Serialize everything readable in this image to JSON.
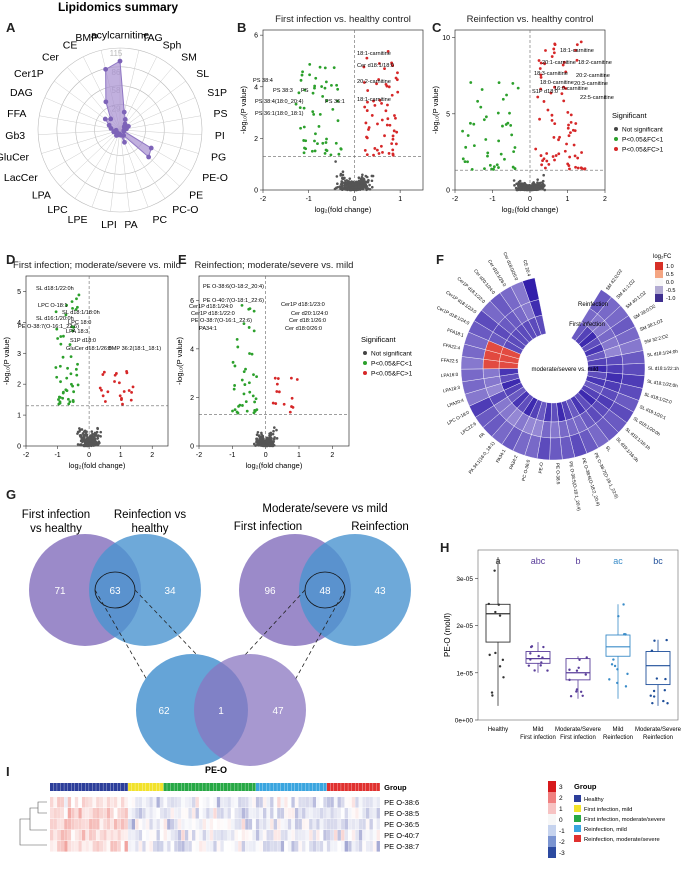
{
  "panel_letters": {
    "A": "A",
    "B": "B",
    "C": "C",
    "D": "D",
    "E": "E",
    "F": "F",
    "G": "G",
    "H": "H",
    "I": "I"
  },
  "chart_data": [
    {
      "id": "A",
      "type": "radar",
      "title": "Lipidomics summary",
      "radial_ticks": [
        "115",
        "86",
        "58",
        "29"
      ],
      "categories": [
        "acylcarnitine",
        "TAG",
        "Sph",
        "SM",
        "SL",
        "S1P",
        "PS",
        "PI",
        "PG",
        "PE-O",
        "PE",
        "PC-O",
        "PC",
        "PA",
        "LPI",
        "LPE",
        "LPC",
        "LPA",
        "LacCer",
        "GluCer",
        "Gb3",
        "FFA",
        "DAG",
        "Cer1P",
        "Cer",
        "CE",
        "BMP"
      ],
      "values": [
        105,
        28,
        18,
        12,
        8,
        14,
        10,
        6,
        6,
        55,
        60,
        10,
        20,
        8,
        6,
        8,
        10,
        6,
        6,
        10,
        6,
        14,
        18,
        28,
        22,
        48,
        95
      ]
    },
    {
      "id": "B",
      "type": "scatter",
      "title": "First infection vs. healthy control",
      "xlabel": "log₂(fold change)",
      "ylabel": "-log₁₀(P value)",
      "xlim": [
        -2,
        1.5
      ],
      "ylim": [
        0,
        6.2
      ],
      "xticks": [
        "-2",
        "-1",
        "0",
        "1"
      ],
      "yticks": [
        "0",
        "2",
        "4",
        "6"
      ],
      "annotations": [
        "18:1-carnitine",
        "Cer d18:1/18:0",
        "20:2-carnitine",
        "18:1-carnitine",
        "PS 38:4",
        "PS 38:3",
        "PS",
        "PS 38:4(18:0_20:4)",
        "PS 36:1",
        "PS 36:1(18:0_18:1)"
      ]
    },
    {
      "id": "C",
      "type": "scatter",
      "title": "Reinfection vs. healthy control",
      "xlabel": "log₂(fold change)",
      "ylabel": "-log₁₀(P value)",
      "xlim": [
        -2,
        2
      ],
      "ylim": [
        0,
        10.5
      ],
      "xticks": [
        "-2",
        "-1",
        "0",
        "1",
        "2"
      ],
      "yticks": [
        "0",
        "5",
        "10"
      ],
      "annotations": [
        "18:1-carnitine",
        "20:1-carnitine",
        "18:2-carnitine",
        "18:3-carnitine",
        "20:2-carnitine",
        "18:0-carnitine",
        "20:3-carnitine",
        "S1P d18:0",
        "16:0-carnitine",
        "22:5-carnitine"
      ],
      "legend_title": "Significant",
      "legend": [
        "Not significant",
        "P<0.05&FC<1",
        "P<0.05&FC>1"
      ],
      "legend_colors": [
        "#444444",
        "#2ca02c",
        "#d62728"
      ]
    },
    {
      "id": "D",
      "type": "scatter",
      "title": "First infection; moderate/severe vs. mild",
      "xlabel": "log₂(fold change)",
      "ylabel": "-log₁₀(P value)",
      "xlim": [
        -2,
        2.5
      ],
      "ylim": [
        0,
        5.5
      ],
      "xticks": [
        "-2",
        "-1",
        "0",
        "1",
        "2"
      ],
      "yticks": [
        "0",
        "1",
        "2",
        "3",
        "4",
        "5"
      ],
      "annotations": [
        "SL d18:1/22:0h",
        "LPC O-18:1",
        "SL d16:1/20:0h",
        "SL d18:1/18:0h",
        "LPC 18:0",
        "PE O-38:7(O-16:1_22:6)",
        "LPA 18:3",
        "S1P d18:0",
        "GluCer d18:1/26:0",
        "BMP 36:2(18:1_18:1)"
      ]
    },
    {
      "id": "E",
      "type": "scatter",
      "title": "Reinfection; moderate/severe vs. mild",
      "xlabel": "log₂(fold change)",
      "ylabel": "-log₁₀(P value)",
      "xlim": [
        -2,
        2.5
      ],
      "ylim": [
        0,
        7
      ],
      "xticks": [
        "-2",
        "-1",
        "0",
        "1",
        "2"
      ],
      "yticks": [
        "0",
        "2",
        "4",
        "6"
      ],
      "annotations": [
        "PE O-38:6(O-18:2_20:4)",
        "PE O-40:7(O-18:1_22:6)",
        "Cer1P d18:1/24:0",
        "Cer1P d18:1/23:0",
        "Cer1P d18:1/22:0",
        "Cer d20:1/24:0",
        "PE O-38:7(O-16:1_22:6)",
        "Cer d18:1/26:0",
        "PA34:1",
        "Cer d18:0/26:0"
      ],
      "legend_title": "Significant",
      "legend": [
        "Not significant",
        "P<0.05&FC<1",
        "P<0.05&FC>1"
      ],
      "legend_colors": [
        "#444444",
        "#2ca02c",
        "#d62728"
      ]
    },
    {
      "id": "F",
      "type": "heatmap",
      "title": "log₂FC",
      "scale_ticks": [
        "1.0",
        "0.5",
        "0.0",
        "-0.5",
        "-1.0"
      ],
      "ring_labels": [
        "Reinfection",
        "First infection",
        "moderate/severe vs. mild"
      ],
      "lipids": [
        "SM 42:0;O2",
        "SM 41:1;O2",
        "SM 40:1;O2",
        "SM 39:0;O2",
        "SM 38:1;O2",
        "SM 32:2;O2",
        "SL d18:1/24:0h",
        "SL d18:1/22:1h",
        "SL d18:1/22:0h",
        "SL d18:1/22:0",
        "SL d19:1/20:1",
        "SL d18:1/20:0h",
        "SL d19:1/16:1h",
        "SL d19:1/16:0h",
        "SL",
        "PE O-38:7(O-16:1_22:6)",
        "PE O-38:6(O-18:2_20:4)",
        "PE O-38:5(O-18:1_20:4)",
        "PE O-38:5",
        "PE-O",
        "PC O-36:0",
        "PA34:2",
        "PA34:1",
        "PA 34:1(16:0_18:1)",
        "PA",
        "LPC22:6",
        "LPC O-18:0",
        "LPA20:4",
        "LPA18:3",
        "LPA16:0",
        "FFA22:5",
        "FFA22:4",
        "FFA18:1",
        "Cer1P d18:1/24:0",
        "Cer1P d18:1/23:0",
        "Cer1P d18:1/22:0",
        "Cer d20:1/24:0",
        "Cer d18:1/26:0",
        "Cer d18:0/26:0",
        "CE 20:4"
      ],
      "reinfection": [
        -0.6,
        -0.5,
        -0.5,
        -0.6,
        -0.5,
        -0.4,
        -0.6,
        -0.7,
        -0.8,
        -0.7,
        -0.6,
        -0.7,
        -0.6,
        -0.6,
        -0.5,
        -0.6,
        -0.7,
        -0.6,
        -0.6,
        -0.7,
        -0.5,
        -0.5,
        -0.6,
        -0.5,
        -0.6,
        -0.6,
        -0.8,
        -0.4,
        -0.5,
        -0.5,
        -0.4,
        -0.5,
        -0.5,
        -0.6,
        -0.7,
        -0.5,
        -0.6,
        -0.5,
        -0.4,
        -1.0
      ],
      "first_infection": [
        -0.5,
        -0.4,
        -0.4,
        -0.5,
        -0.4,
        -0.3,
        -0.7,
        -0.8,
        -0.9,
        -0.8,
        -0.7,
        -0.8,
        -0.7,
        -0.7,
        -0.6,
        -0.5,
        -0.5,
        -0.5,
        -0.4,
        -0.5,
        -0.3,
        -0.3,
        -0.4,
        -0.3,
        -0.4,
        -0.4,
        -0.7,
        -0.3,
        -0.4,
        -0.4,
        0.9,
        0.95,
        0.9,
        -0.6,
        -0.7,
        -0.6,
        -0.6,
        -0.5,
        -0.4,
        -0.9
      ]
    },
    {
      "id": "G",
      "type": "venn",
      "title": "",
      "left": {
        "set_a": "First infection\nvs healthy",
        "set_b": "Reinfection vs\nhealthy",
        "a_only": "71",
        "both": "63",
        "b_only": "34"
      },
      "right": {
        "heading": "Moderate/severe vs mild",
        "set_a": "First infection",
        "set_b": "Reinfection",
        "a_only": "96",
        "both": "48",
        "b_only": "43"
      },
      "bottom": {
        "a_only": "62",
        "both": "1",
        "b_only": "47"
      }
    },
    {
      "id": "H",
      "type": "boxplot",
      "title": "",
      "ylabel": "PE-O (mol/l)",
      "yticks": [
        "0e+00",
        "1e-05",
        "2e-05",
        "3e-05"
      ],
      "ylim": [
        0,
        3.6e-05
      ],
      "categories": [
        "Healthy",
        "Mild\nFirst infection",
        "Moderate/Severe\nFirst infection",
        "Mild\nReinfection",
        "Moderate/Severe\nReinfection"
      ],
      "letters": [
        "a",
        "abc",
        "b",
        "ac",
        "bc"
      ],
      "colors": [
        "#333333",
        "#5a3e9a",
        "#5a3e9a",
        "#3a8cc8",
        "#1f4f9a"
      ],
      "q1": [
        1.65e-05,
        1.2e-05,
        8.5e-06,
        1.35e-05,
        7.5e-06
      ],
      "median": [
        2.25e-05,
        1.3e-05,
        1e-05,
        1.55e-05,
        1.15e-05
      ],
      "q3": [
        2.45e-05,
        1.45e-05,
        1.3e-05,
        1.8e-05,
        1.45e-05
      ],
      "whisker_low": [
        3e-06,
        1e-05,
        4.5e-06,
        4.5e-06,
        3e-06
      ],
      "whisker_high": [
        3.45e-05,
        1.65e-05,
        1.35e-05,
        2.45e-05,
        1.7e-05
      ]
    },
    {
      "id": "I",
      "type": "heatmap",
      "title": "PE-O",
      "rows": [
        "PE O-38:6",
        "PE O-38:5",
        "PE O-36:5",
        "PE O-40:7",
        "PE O-38:7"
      ],
      "scale_ticks": [
        "3",
        "2",
        "1",
        "0",
        "-1",
        "-2",
        "-3"
      ],
      "group_title": "Group",
      "groups": [
        "Healthy",
        "First infection, mild",
        "First infection, moderate/severe",
        "Reinfection, mild",
        "Reinfection, moderate/severe"
      ],
      "group_colors": [
        "#2c3e9a",
        "#f2e22a",
        "#27a845",
        "#3aa5df",
        "#e0312f"
      ],
      "group_counts": [
        22,
        10,
        26,
        20,
        15
      ]
    }
  ]
}
